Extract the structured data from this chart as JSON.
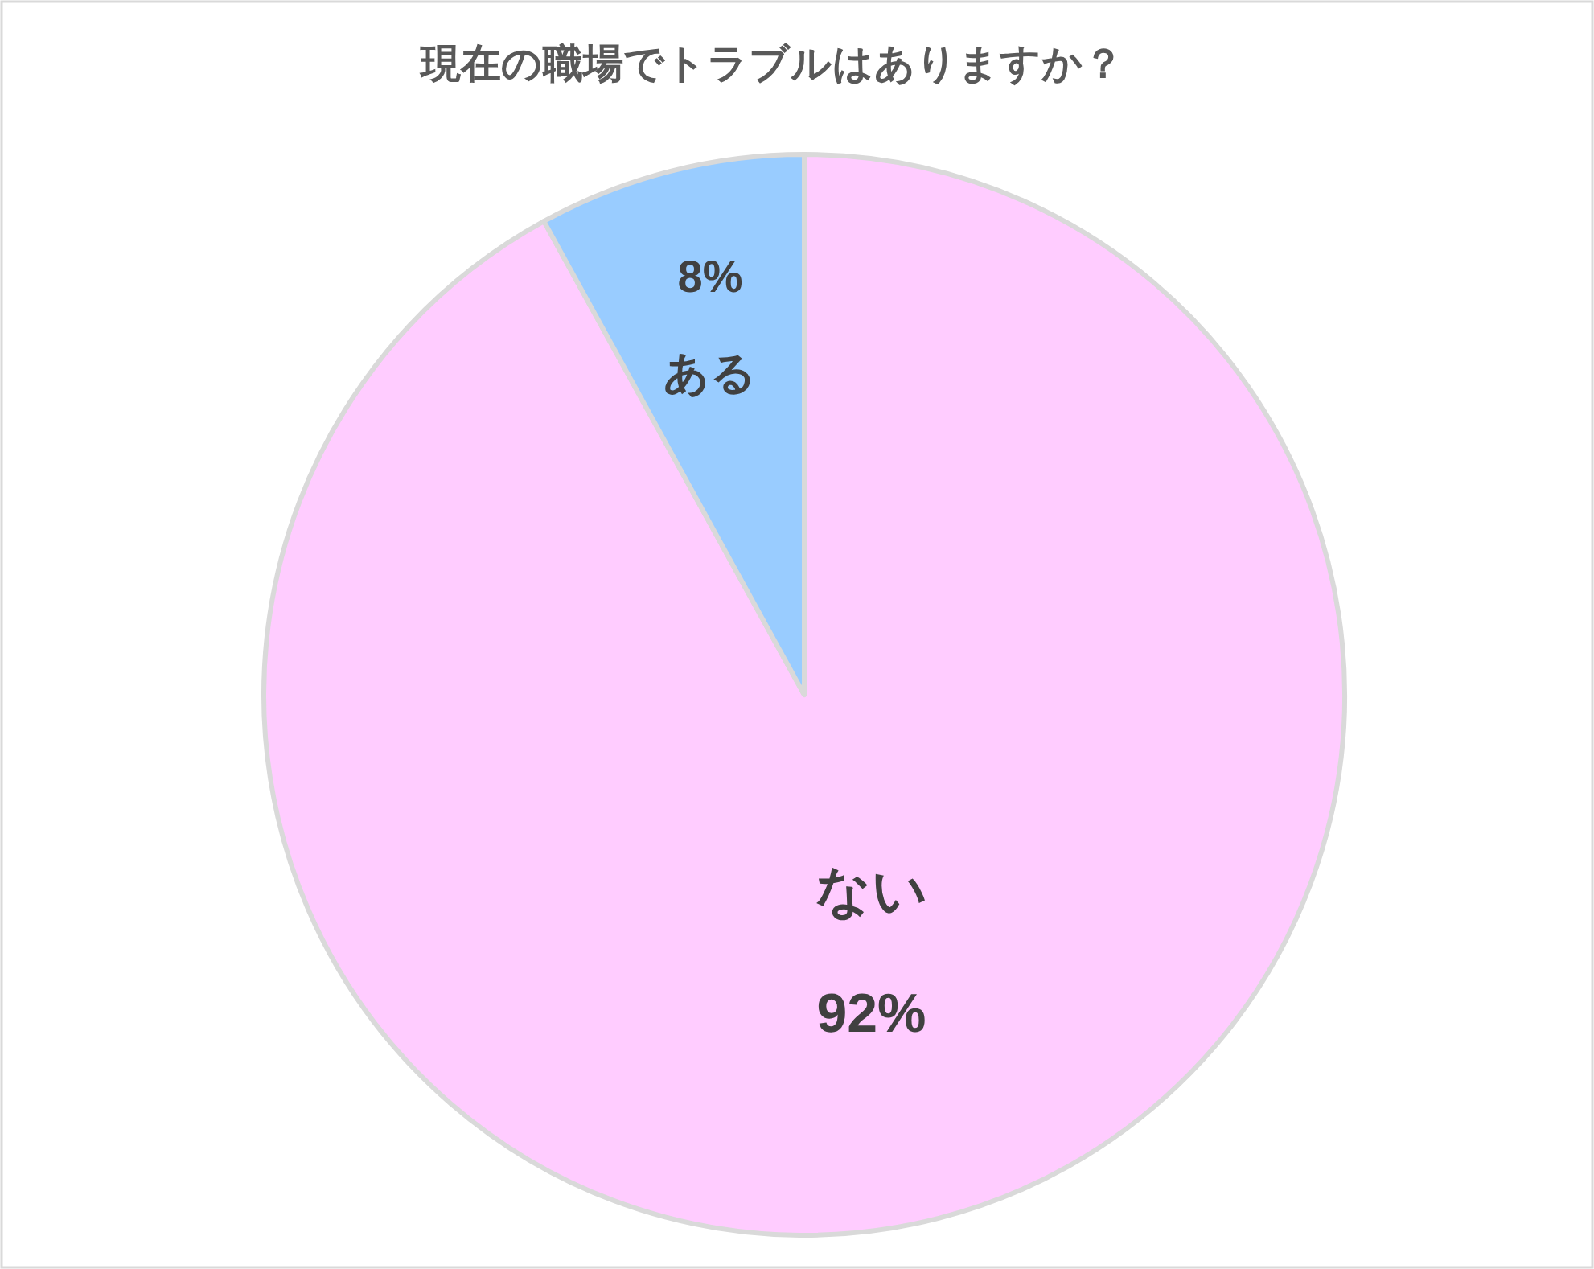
{
  "chart_data": {
    "type": "pie",
    "title": "現在の職場でトラブルはありますか？",
    "categories": [
      "ない",
      "ある"
    ],
    "values": [
      92,
      8
    ],
    "colors": [
      "#ffccff",
      "#99ccff"
    ],
    "value_labels": [
      "92%",
      "8%"
    ]
  }
}
